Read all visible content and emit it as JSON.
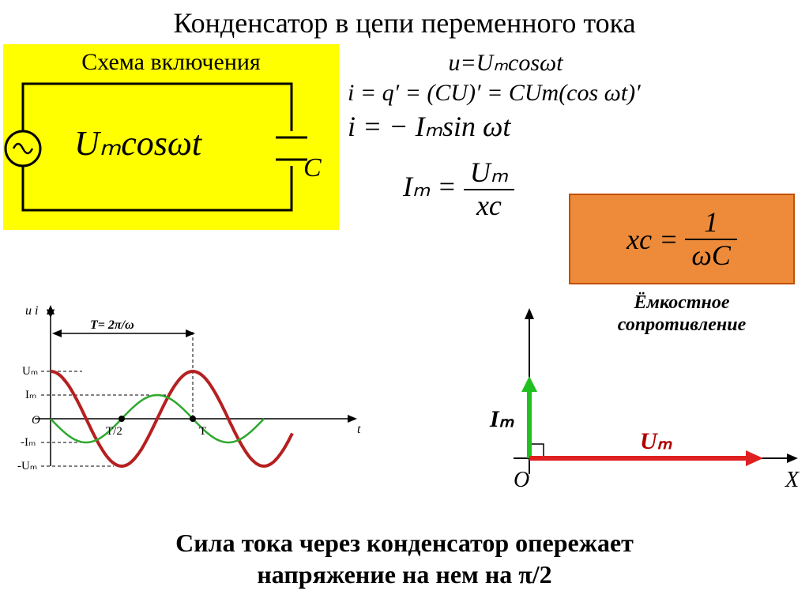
{
  "title": "Конденсатор в цепи переменного тока",
  "circuit": {
    "bg_color": "#ffff00",
    "label": "Схема включения",
    "source_text": "Uₘcosωt",
    "capacitor_letter": "C",
    "stroke": "#000000",
    "stroke_width": 3
  },
  "equations": {
    "u": "u=Uₘcosωt",
    "i_deriv": "i = q′ = (CU)′ = CUm(cos ωt)′",
    "i_sin": "i = − Iₘsin ωt",
    "Im_eq": {
      "lhs": "Iₘ =",
      "num": "Uₘ",
      "den": "xc"
    }
  },
  "xc_box": {
    "bg_color": "#ed8b3a",
    "border_color": "#c05000",
    "lhs": "xc =",
    "num": "1",
    "den": "ωC"
  },
  "xc_caption": "Ёмкостное сопротивление",
  "wave": {
    "u_color": "#b52020",
    "i_color": "#2da82d",
    "axis_color": "#000000",
    "y_vals": [
      "Uₘ",
      "Iₘ",
      "O",
      "-Iₘ",
      "-Uₘ"
    ],
    "t_labels": [
      "T/2",
      "T"
    ],
    "period_label": "T= 2π/ω",
    "y_axis_top": "u  i",
    "x_axis": "t",
    "u_amplitude": 60,
    "i_amplitude": 30,
    "line_width_u": 4,
    "line_width_i": 2.5
  },
  "phasor": {
    "u_color": "#e02020",
    "i_color": "#20c020",
    "axis_color": "#000000",
    "Im_label": "Iₘ",
    "Um_label": "Uₘ",
    "O_label": "O",
    "X_label": "X",
    "arrow_width": 5
  },
  "conclusion_l1": "Сила тока через конденсатор опережает",
  "conclusion_l2": "напряжение на нем на π/2"
}
